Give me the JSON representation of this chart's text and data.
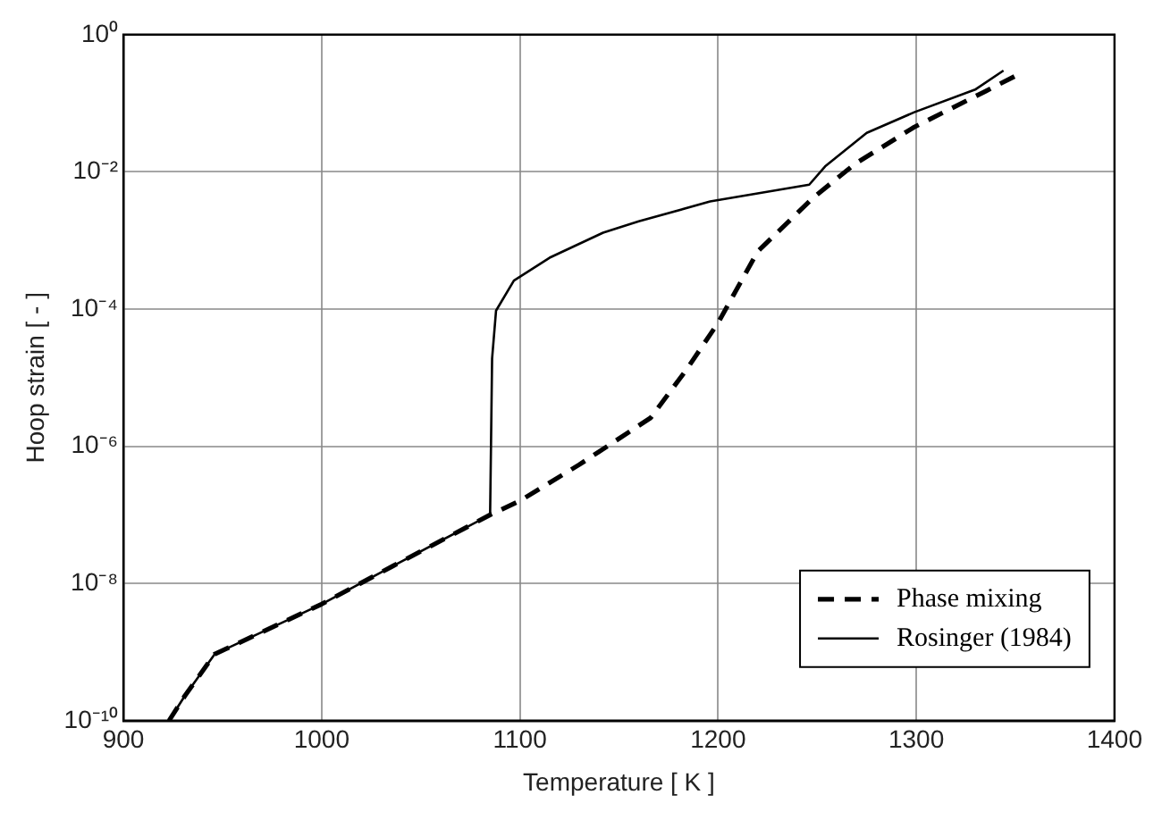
{
  "chart_data": {
    "type": "line",
    "xlabel": "Temperature [ K ]",
    "ylabel": "Hoop strain [ - ]",
    "log": "y",
    "grid": true,
    "legend": "bottom right",
    "marker": "none",
    "xlim": [
      900,
      1400
    ],
    "xticks": [
      900,
      1000,
      1100,
      1200,
      1300,
      1400
    ],
    "ylim": [
      1e-10,
      1
    ],
    "yticks": [
      {
        "value": 1e-10,
        "label": "10⁻¹⁰"
      },
      {
        "value": 1e-08,
        "label": "10⁻⁸"
      },
      {
        "value": 1e-06,
        "label": "10⁻⁶"
      },
      {
        "value": 0.0001,
        "label": "10⁻⁴"
      },
      {
        "value": 0.01,
        "label": "10⁻²"
      },
      {
        "value": 1,
        "label": "10⁰"
      }
    ],
    "series": [
      {
        "name": "Phase mixing",
        "color": "#000000",
        "line_style": "dashed",
        "x": [
          923,
          931,
          946,
          1000,
          1036,
          1085,
          1100,
          1130,
          1166,
          1184,
          1200,
          1220,
          1248,
          1269,
          1299,
          1335,
          1350
        ],
        "values": [
          1e-10,
          2.3e-10,
          9.3e-10,
          5e-09,
          1.8e-08,
          1e-07,
          1.6e-07,
          5.4e-07,
          2.6e-06,
          1.3e-05,
          6.3e-05,
          0.00069,
          0.0042,
          0.013,
          0.045,
          0.15,
          0.25
        ]
      },
      {
        "name": "Rosinger (1984)",
        "color": "#000000",
        "line_style": "solid",
        "x": [
          923,
          931,
          946,
          1000,
          1036,
          1085,
          1086,
          1088,
          1097,
          1115,
          1142,
          1160,
          1196,
          1246,
          1254,
          1275,
          1299,
          1330,
          1344
        ],
        "values": [
          1e-10,
          2.3e-10,
          9.3e-10,
          5e-09,
          1.8e-08,
          1e-07,
          1.9e-05,
          9.5e-05,
          0.00026,
          0.00056,
          0.0013,
          0.0019,
          0.0037,
          0.0065,
          0.012,
          0.037,
          0.074,
          0.16,
          0.3
        ]
      }
    ]
  }
}
